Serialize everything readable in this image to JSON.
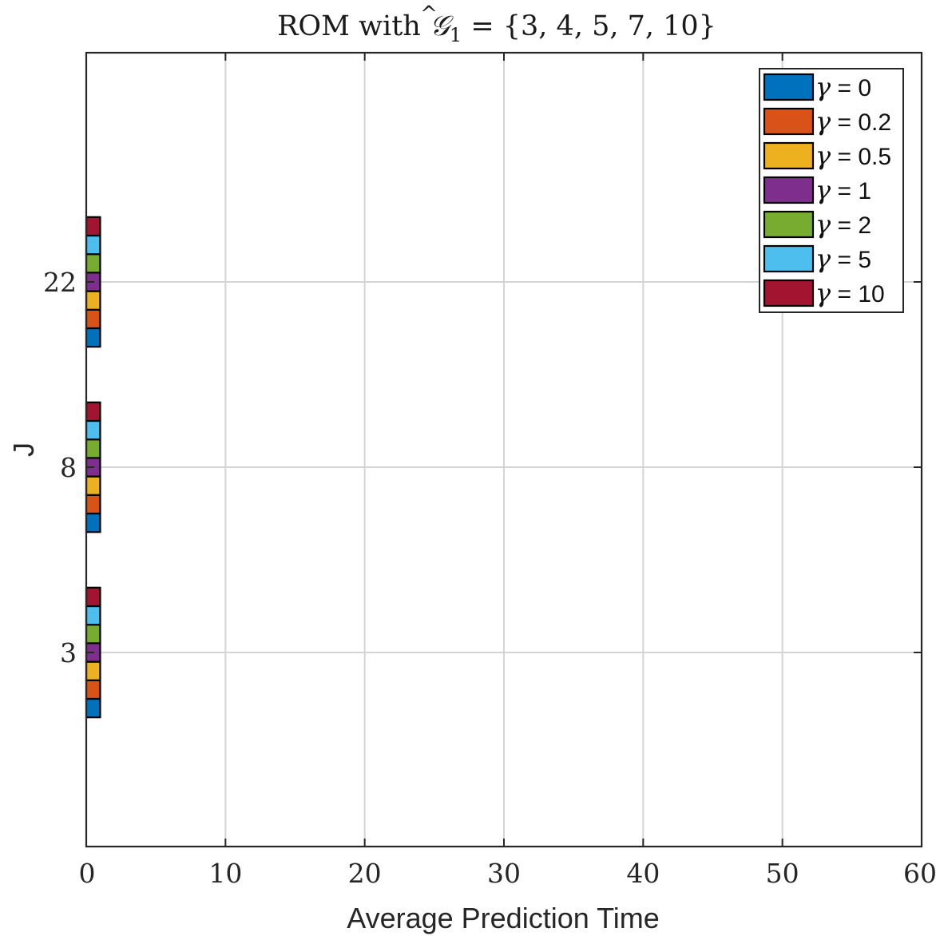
{
  "chart_data": {
    "type": "bar",
    "orientation": "horizontal",
    "title": {
      "prefix": "ROM with ",
      "symbol": "𝒢",
      "hat": "^",
      "subscript": "1",
      "suffix": " = {3, 4, 5, 7, 10}"
    },
    "xlabel": "Average Prediction Time",
    "ylabel": "J",
    "xlim": [
      0,
      60
    ],
    "xticks": [
      0,
      10,
      20,
      30,
      40,
      50,
      60
    ],
    "categories": [
      "3",
      "8",
      "22"
    ],
    "grid": true,
    "legend_position": "top-right",
    "series": [
      {
        "name": "γ = 0",
        "gamma_symbol": "γ",
        "gamma_value": " = 0",
        "color": "#0072BD",
        "values": [
          1,
          1,
          1
        ]
      },
      {
        "name": "γ = 0.2",
        "gamma_symbol": "γ",
        "gamma_value": " = 0.2",
        "color": "#D95319",
        "values": [
          1,
          1,
          1
        ]
      },
      {
        "name": "γ = 0.5",
        "gamma_symbol": "γ",
        "gamma_value": " = 0.5",
        "color": "#EDB120",
        "values": [
          1,
          1,
          1
        ]
      },
      {
        "name": "γ = 1",
        "gamma_symbol": "γ",
        "gamma_value": " = 1",
        "color": "#7E2F8E",
        "values": [
          1,
          1,
          1
        ]
      },
      {
        "name": "γ = 2",
        "gamma_symbol": "γ",
        "gamma_value": " = 2",
        "color": "#77AC30",
        "values": [
          1,
          1,
          1
        ]
      },
      {
        "name": "γ = 5",
        "gamma_symbol": "γ",
        "gamma_value": " = 5",
        "color": "#4DBEEE",
        "values": [
          1,
          1,
          1
        ]
      },
      {
        "name": "γ = 10",
        "gamma_symbol": "γ",
        "gamma_value": " = 10",
        "color": "#A2142F",
        "values": [
          1,
          1,
          1
        ]
      }
    ]
  }
}
